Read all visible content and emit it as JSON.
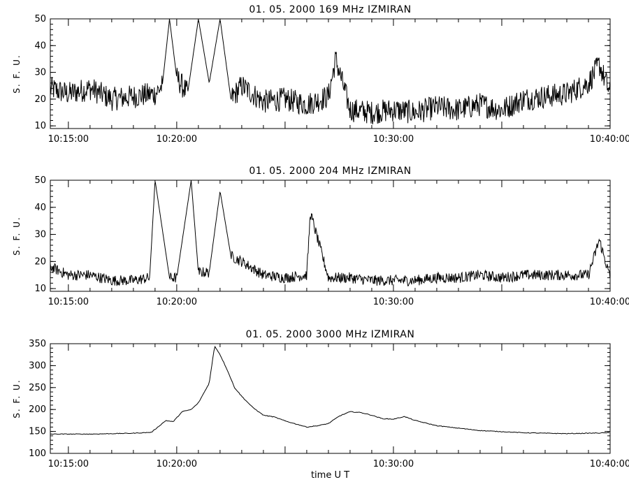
{
  "chart_data": [
    {
      "type": "line",
      "title": "01.  05.  2000    169  MHz    IZMIRAN",
      "xlabel": "",
      "ylabel": "S. F. U.",
      "xlim": [
        "10:14:10",
        "10:40:00"
      ],
      "ylim": [
        9,
        50
      ],
      "yticks": [
        10,
        20,
        30,
        40,
        50
      ],
      "xticks": [
        "10:15:00",
        "10:20:00",
        "10:30:00",
        "10:40:00"
      ],
      "series": [
        {
          "values_note": "noisy radio flux, approx. samples (time, sfu)",
          "x": [
            "10:14:10",
            "10:15:00",
            "10:16:00",
            "10:17:00",
            "10:18:00",
            "10:19:00",
            "10:19:20",
            "10:19:40",
            "10:20:00",
            "10:20:30",
            "10:21:00",
            "10:21:30",
            "10:22:00",
            "10:22:30",
            "10:23:00",
            "10:24:00",
            "10:25:00",
            "10:26:00",
            "10:27:00",
            "10:27:20",
            "10:28:00",
            "10:29:00",
            "10:30:00",
            "10:31:00",
            "10:32:00",
            "10:33:00",
            "10:34:00",
            "10:35:00",
            "10:36:00",
            "10:37:00",
            "10:38:00",
            "10:39:00",
            "10:39:30",
            "10:40:00"
          ],
          "y": [
            24,
            22,
            24,
            20,
            21,
            22,
            25,
            50,
            28,
            22,
            50,
            26,
            50,
            20,
            25,
            19,
            20,
            18,
            21,
            35,
            16,
            15,
            16,
            15,
            17,
            16,
            18,
            16,
            20,
            21,
            22,
            26,
            33,
            22
          ]
        }
      ]
    },
    {
      "type": "line",
      "title": "01.  05.  2000    204  MHz    IZMIRAN",
      "xlabel": "",
      "ylabel": "S. F. U.",
      "xlim": [
        "10:14:10",
        "10:40:00"
      ],
      "ylim": [
        9,
        50
      ],
      "yticks": [
        10,
        20,
        30,
        40,
        50
      ],
      "xticks": [
        "10:15:00",
        "10:20:00",
        "10:30:00",
        "10:40:00"
      ],
      "series": [
        {
          "values_note": "noisy radio flux, approx. samples (time, sfu)",
          "x": [
            "10:14:10",
            "10:15:00",
            "10:16:00",
            "10:17:00",
            "10:18:00",
            "10:18:45",
            "10:19:00",
            "10:19:40",
            "10:20:00",
            "10:20:40",
            "10:21:00",
            "10:21:30",
            "10:22:00",
            "10:22:30",
            "10:23:00",
            "10:24:00",
            "10:25:00",
            "10:26:00",
            "10:26:10",
            "10:27:00",
            "10:28:00",
            "10:29:00",
            "10:30:00",
            "10:31:00",
            "10:32:00",
            "10:33:00",
            "10:34:00",
            "10:35:00",
            "10:36:00",
            "10:37:00",
            "10:38:00",
            "10:39:00",
            "10:39:30",
            "10:40:00"
          ],
          "y": [
            18,
            15,
            15,
            13,
            13,
            14,
            50,
            14,
            14,
            50,
            16,
            16,
            46,
            22,
            20,
            15,
            14,
            15,
            38,
            14,
            14,
            13,
            13,
            13,
            14,
            14,
            15,
            14,
            15,
            15,
            15,
            15,
            28,
            14
          ]
        }
      ]
    },
    {
      "type": "line",
      "title": "01.  05.  2000    3000  MHz    IZMIRAN",
      "xlabel": "time   U T",
      "ylabel": "S. F. U.",
      "xlim": [
        "10:14:10",
        "10:40:00"
      ],
      "ylim": [
        100,
        350
      ],
      "yticks": [
        100,
        150,
        200,
        250,
        300,
        350
      ],
      "xticks": [
        "10:15:00",
        "10:20:00",
        "10:30:00",
        "10:40:00"
      ],
      "series": [
        {
          "x": [
            "10:14:10",
            "10:16:00",
            "10:18:00",
            "10:18:50",
            "10:19:30",
            "10:19:50",
            "10:20:15",
            "10:20:40",
            "10:21:00",
            "10:21:30",
            "10:21:45",
            "10:22:00",
            "10:22:20",
            "10:22:40",
            "10:23:00",
            "10:23:30",
            "10:24:00",
            "10:24:30",
            "10:25:00",
            "10:26:00",
            "10:26:30",
            "10:27:00",
            "10:27:30",
            "10:28:00",
            "10:28:30",
            "10:29:00",
            "10:29:30",
            "10:30:00",
            "10:30:30",
            "10:31:00",
            "10:32:00",
            "10:34:00",
            "10:36:00",
            "10:38:00",
            "10:40:00"
          ],
          "y": [
            144,
            144,
            146,
            148,
            175,
            172,
            195,
            200,
            215,
            260,
            345,
            325,
            290,
            250,
            230,
            205,
            187,
            183,
            174,
            160,
            163,
            168,
            185,
            195,
            193,
            187,
            179,
            178,
            184,
            175,
            163,
            152,
            147,
            145,
            147
          ]
        }
      ]
    }
  ]
}
